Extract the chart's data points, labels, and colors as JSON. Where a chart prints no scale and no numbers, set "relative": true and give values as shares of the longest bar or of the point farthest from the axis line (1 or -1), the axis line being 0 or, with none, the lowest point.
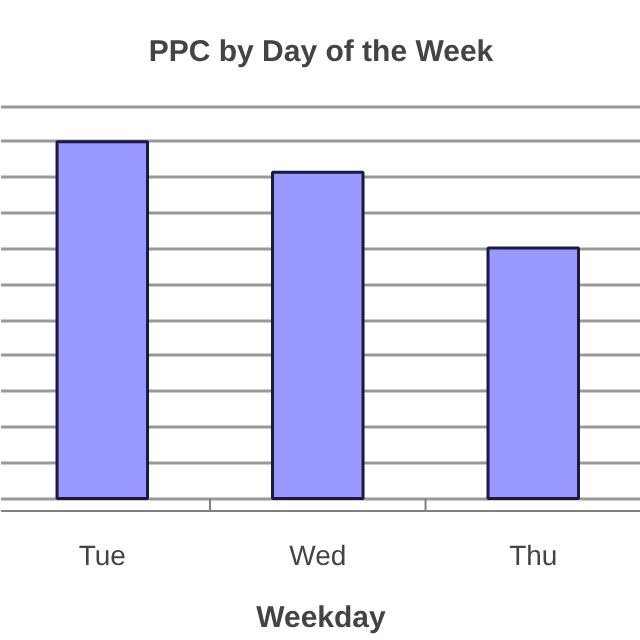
{
  "chart_data": {
    "type": "bar",
    "title": "PPC by Day of the Week",
    "xlabel": "Weekday",
    "categories": [
      "Tue",
      "Wed",
      "Thu"
    ],
    "values": [
      1,
      0.915,
      0.702
    ],
    "color": "#9999ff",
    "relative": true,
    "grid": "y"
  }
}
